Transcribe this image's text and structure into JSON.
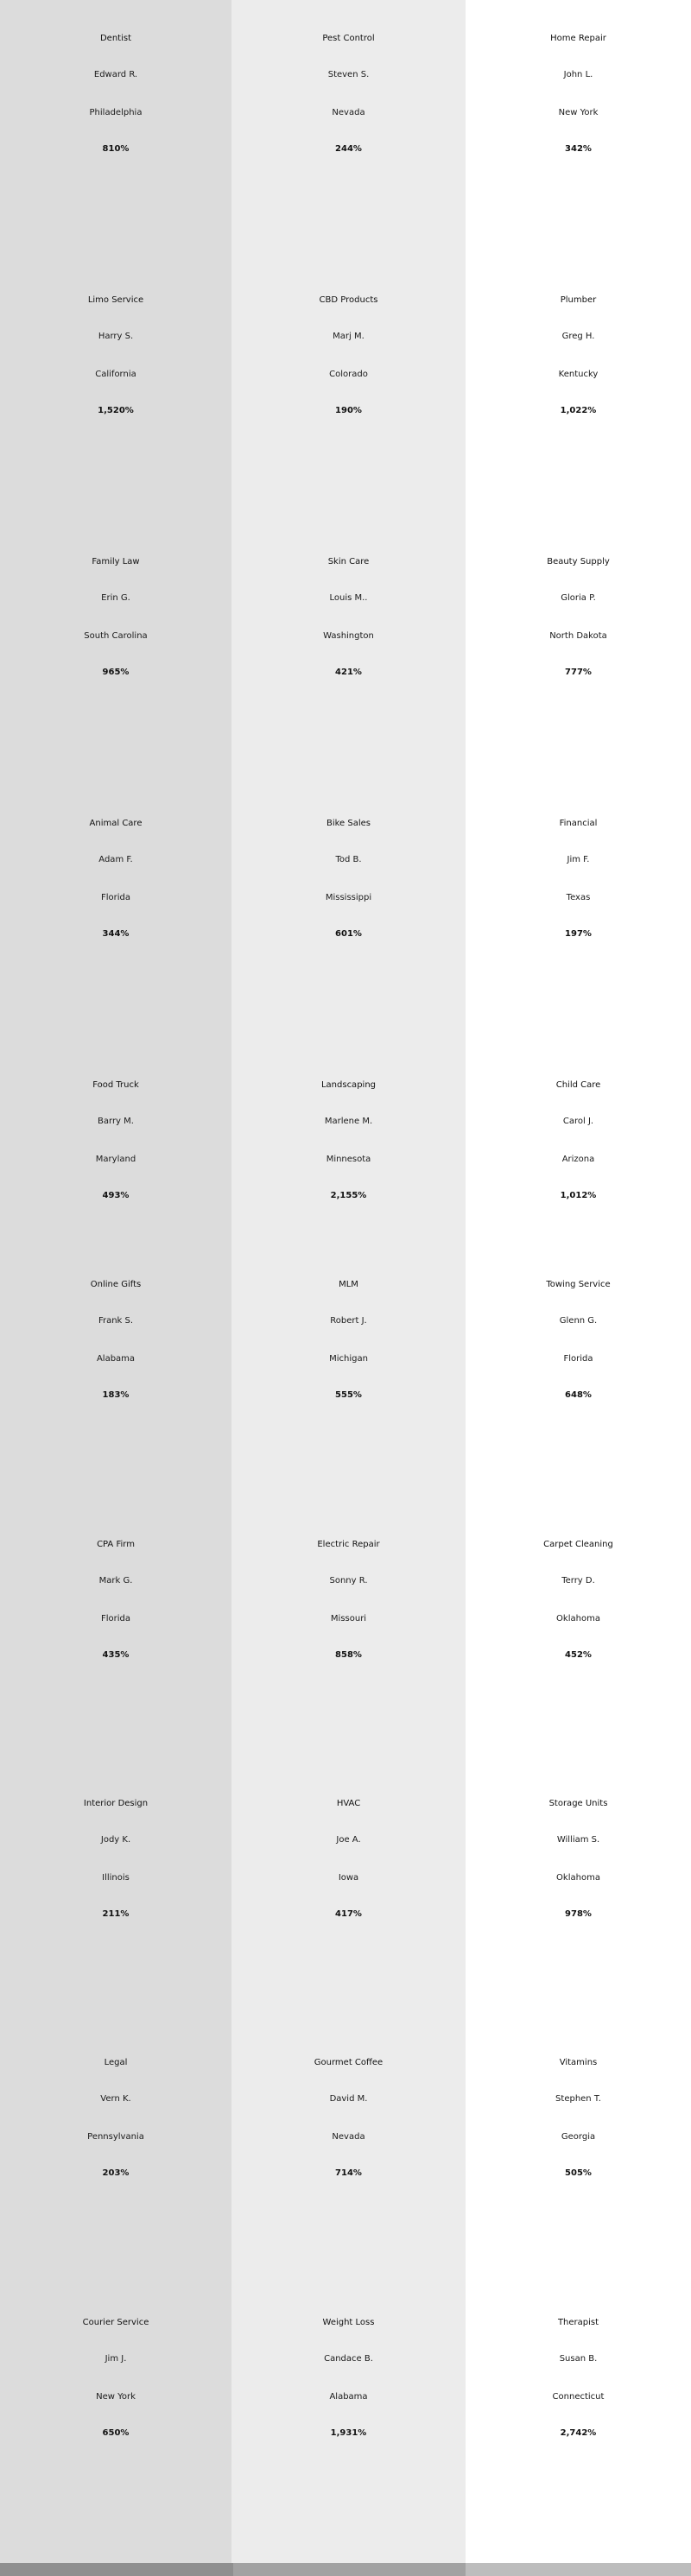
{
  "rows": [
    [
      {
        "industry": "Dentist",
        "person": "Edward R.",
        "location": "Philadelphia",
        "percent": "810%"
      },
      {
        "industry": "Pest Control",
        "person": "Steven S.",
        "location": "Nevada",
        "percent": "244%"
      },
      {
        "industry": "Home Repair",
        "person": "John L.",
        "location": "New York",
        "percent": "342%"
      }
    ],
    [
      {
        "industry": "Limo Service",
        "person": "Harry S.",
        "location": "California",
        "percent": "1,520%"
      },
      {
        "industry": "CBD Products",
        "person": "Marj M.",
        "location": "Colorado",
        "percent": "190%"
      },
      {
        "industry": "Plumber",
        "person": "Greg H.",
        "location": "Kentucky",
        "percent": "1,022%"
      }
    ],
    [
      {
        "industry": "Family Law",
        "person": "Erin G.",
        "location": "South Carolina",
        "percent": "965%"
      },
      {
        "industry": "Skin Care",
        "person": "Louis M..",
        "location": "Washington",
        "percent": "421%"
      },
      {
        "industry": "Beauty Supply",
        "person": "Gloria P.",
        "location": "North Dakota",
        "percent": "777%"
      }
    ],
    [
      {
        "industry": "Animal Care",
        "person": "Adam F.",
        "location": "Florida",
        "percent": "344%"
      },
      {
        "industry": "Bike Sales",
        "person": "Tod B.",
        "location": "Mississippi",
        "percent": "601%"
      },
      {
        "industry": "Financial",
        "person": "Jim F.",
        "location": "Texas",
        "percent": "197%"
      }
    ],
    [
      {
        "industry": "Food Truck",
        "person": "Barry M.",
        "location": "Maryland",
        "percent": "493%"
      },
      {
        "industry": "Landscaping",
        "person": "Marlene M.",
        "location": "Minnesota",
        "percent": "2,155%"
      },
      {
        "industry": "Child Care",
        "person": "Carol J.",
        "location": "Arizona",
        "percent": "1,012%"
      }
    ],
    [
      {
        "industry": "Online Gifts",
        "person": "Frank S.",
        "location": "Alabama",
        "percent": "183%"
      },
      {
        "industry": "MLM",
        "person": "Robert J.",
        "location": "Michigan",
        "percent": "555%"
      },
      {
        "industry": "Towing Service",
        "person": "Glenn G.",
        "location": "Florida",
        "percent": "648%"
      }
    ],
    [
      {
        "industry": "CPA Firm",
        "person": "Mark G.",
        "location": "Florida",
        "percent": "435%"
      },
      {
        "industry": "Electric Repair",
        "person": "Sonny R.",
        "location": "Missouri",
        "percent": "858%"
      },
      {
        "industry": "Carpet Cleaning",
        "person": "Terry D.",
        "location": "Oklahoma",
        "percent": "452%"
      }
    ],
    [
      {
        "industry": "Interior Design",
        "person": "Jody K.",
        "location": "Illinois",
        "percent": "211%"
      },
      {
        "industry": "HVAC",
        "person": "Joe A.",
        "location": "Iowa",
        "percent": "417%"
      },
      {
        "industry": "Storage Units",
        "person": "William S.",
        "location": "Oklahoma",
        "percent": "978%"
      }
    ],
    [
      {
        "industry": "Legal",
        "person": "Vern K.",
        "location": "Pennsylvania",
        "percent": "203%"
      },
      {
        "industry": "Gourmet Coffee",
        "person": "David M.",
        "location": "Nevada",
        "percent": "714%"
      },
      {
        "industry": "Vitamins",
        "person": "Stephen T.",
        "location": "Georgia",
        "percent": "505%"
      }
    ],
    [
      {
        "industry": "Courier Service",
        "person": "Jim J.",
        "location": "New York",
        "percent": "650%"
      },
      {
        "industry": "Weight Loss",
        "person": "Candace B.",
        "location": "Alabama",
        "percent": "1,931%"
      },
      {
        "industry": "Therapist",
        "person": "Susan B.",
        "location": "Connecticut",
        "percent": "2,742%"
      }
    ]
  ]
}
